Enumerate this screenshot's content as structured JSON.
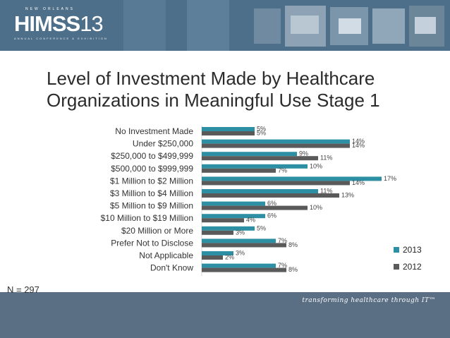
{
  "header": {
    "logo_city": "NEW ORLEANS",
    "logo_name": "HIMSS",
    "logo_year": "13",
    "logo_sub": "ANNUAL CONFERENCE & EXHIBITION"
  },
  "footer": {
    "sample_size": "N = 297",
    "tagline": "transforming healthcare through IT™"
  },
  "colors": {
    "banner": "#4e6f8a",
    "series_2013": "#2c8fa3",
    "series_2012": "#5a5a5a"
  },
  "chart_data": {
    "type": "bar",
    "orientation": "horizontal",
    "title": "Level of Investment Made by Healthcare Organizations in Meaningful Use Stage 1",
    "categories": [
      "No Investment Made",
      "Under $250,000",
      "$250,000 to $499,999",
      "$500,000 to $999,999",
      "$1 Million to $2 Million",
      "$3 Million to $4 Million",
      "$5 Million to $9 Million",
      "$10 Million to $19 Million",
      "$20 Million or More",
      "Prefer Not to Disclose",
      "Not Applicable",
      "Don't Know"
    ],
    "series": [
      {
        "name": "2013",
        "values": [
          5,
          14,
          9,
          10,
          17,
          11,
          6,
          6,
          5,
          7,
          3,
          7
        ],
        "labels": [
          "5%",
          "14%",
          "9%",
          "10%",
          "17%",
          "11%",
          "6%",
          "6%",
          "5%",
          "7%",
          "3%",
          "7%"
        ]
      },
      {
        "name": "2012",
        "values": [
          5,
          14,
          11,
          7,
          14,
          13,
          10,
          4,
          3,
          8,
          2,
          8
        ],
        "labels": [
          "5%",
          "14%",
          "11%",
          "7%",
          "14%",
          "13%",
          "10%",
          "4%",
          "3%",
          "8%",
          "2%",
          "8%"
        ]
      }
    ],
    "xlim": [
      0,
      18
    ],
    "grid": false,
    "legend_position": "bottom-right"
  }
}
